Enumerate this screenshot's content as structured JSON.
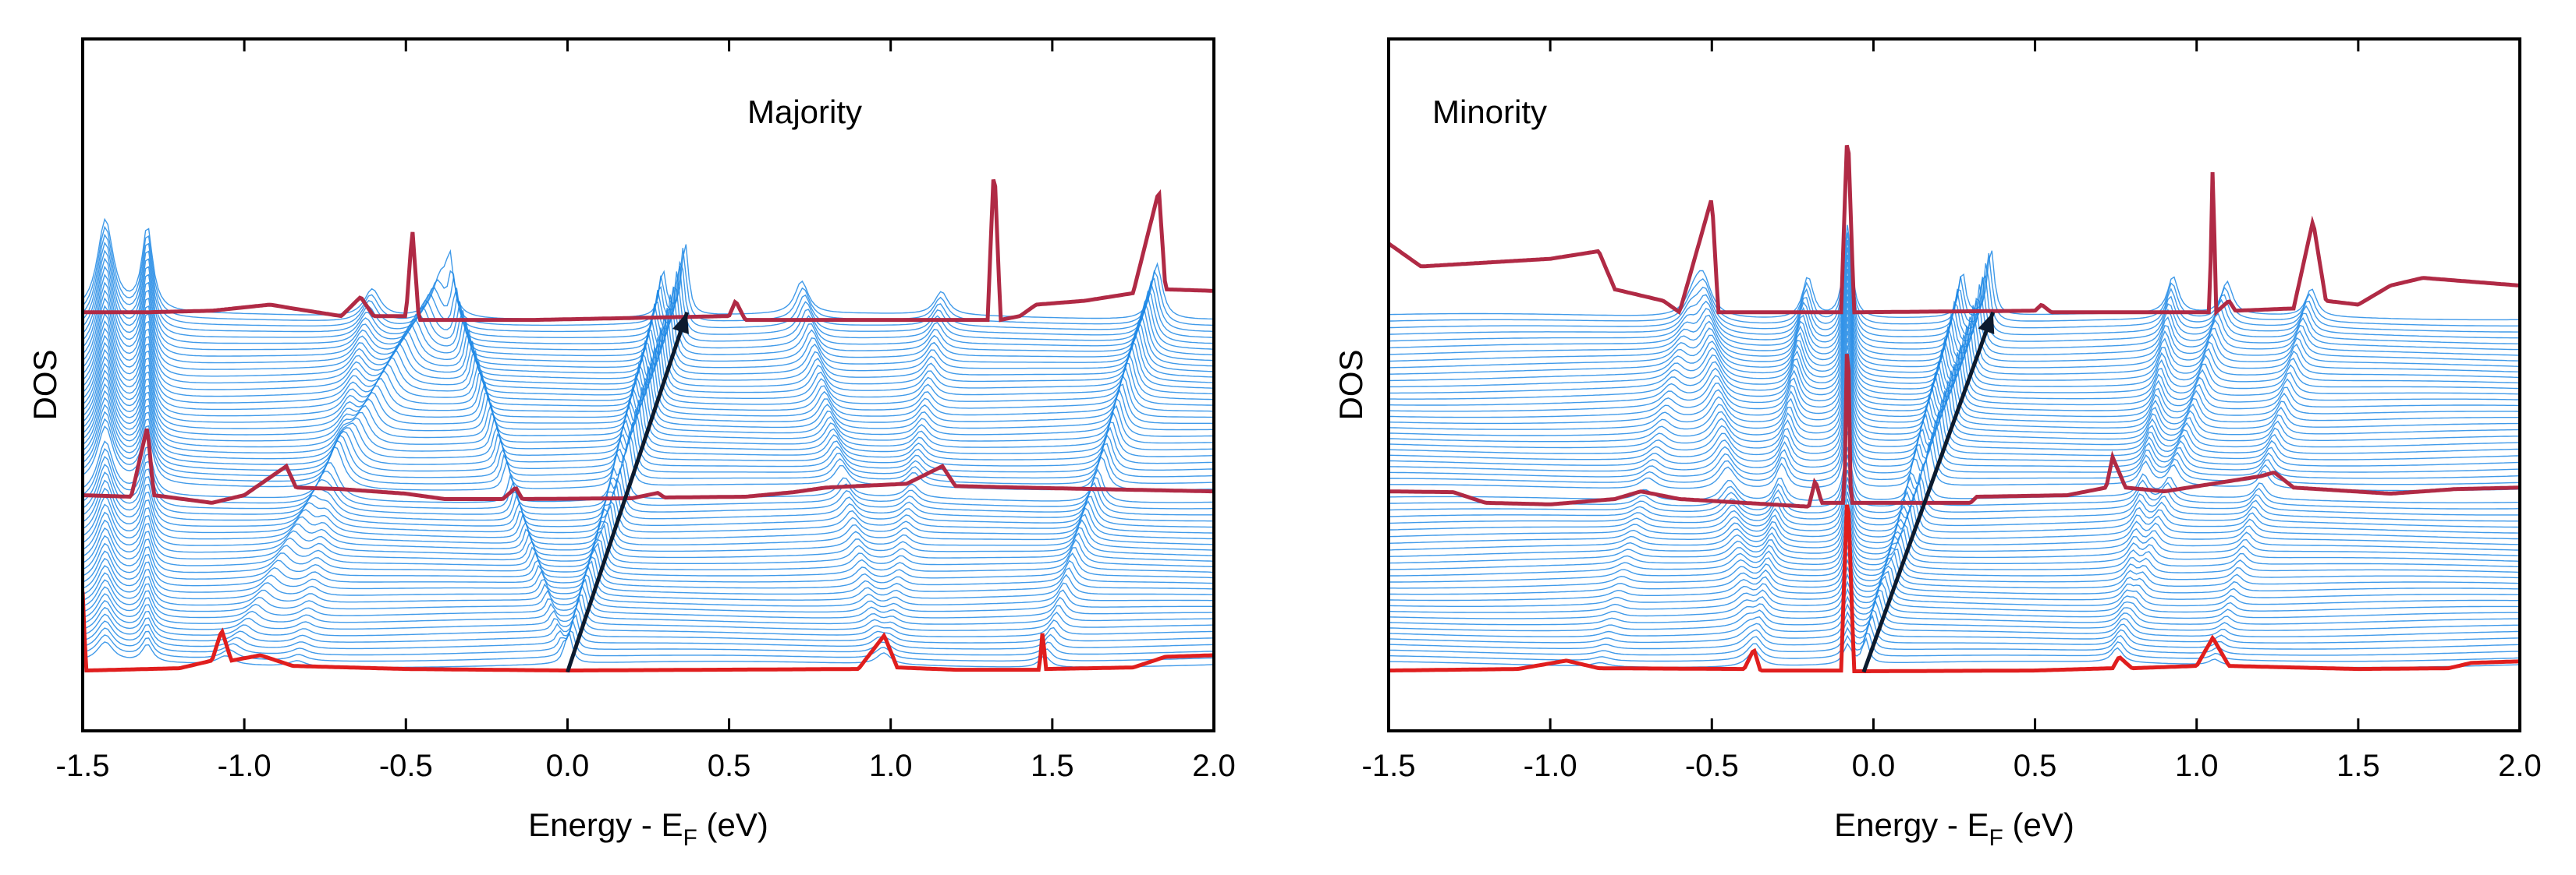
{
  "chart_data": [
    {
      "type": "line",
      "title": "Majority",
      "xlabel": "Energy - E",
      "xlabel_sub": "F",
      "xlabel_unit": " (eV)",
      "ylabel": "DOS",
      "xlim": [
        -1.5,
        2.0
      ],
      "xticks": [
        -1.5,
        -1.0,
        -0.5,
        0.0,
        0.5,
        1.0,
        1.5,
        2.0
      ],
      "xtick_labels": [
        "-1.5",
        "-1.0",
        "-0.5",
        "0.0",
        "0.5",
        "1.0",
        "1.5",
        "2.0"
      ],
      "n_curves": 60,
      "colors": {
        "stack": "#1e88e5",
        "highlight": "#e01e1e",
        "highlight_mid": "#b02a45",
        "arrow": "#0d1b2e"
      },
      "dispersion_arrow": {
        "from": [
          0.0,
          0.0
        ],
        "to": [
          0.37,
          1.0
        ]
      },
      "bands": [
        {
          "x0": -1.07,
          "x1": -0.38,
          "w": 0.03,
          "a": 0.9
        },
        {
          "x0": -0.84,
          "x1": -0.6,
          "w": 0.03,
          "a": 0.6
        },
        {
          "x0": 0.0,
          "x1": 0.37,
          "w": 0.012,
          "a": 1.6
        },
        {
          "x0": 0.0,
          "x1": 0.3,
          "w": 0.012,
          "a": 1.0
        },
        {
          "x0": 0.0,
          "x1": -0.37,
          "w": 0.012,
          "a": 1.0
        },
        {
          "x0": 0.98,
          "x1": 0.72,
          "w": 0.025,
          "a": 0.7
        },
        {
          "x0": 0.98,
          "x1": 1.16,
          "w": 0.025,
          "a": 0.5
        },
        {
          "x0": 1.47,
          "x1": 1.83,
          "w": 0.02,
          "a": 1.2
        },
        {
          "x0": -1.3,
          "x1": -1.3,
          "w": 0.02,
          "a": 1.8
        },
        {
          "x0": -1.43,
          "x1": -1.43,
          "w": 0.03,
          "a": 2.0
        }
      ],
      "highlighted_curves": [
        {
          "index": 0,
          "color": "highlight",
          "points": [
            [
              -1.5,
              1.05
            ],
            [
              -1.49,
              0.02
            ],
            [
              -1.2,
              0.05
            ],
            [
              -1.1,
              0.15
            ],
            [
              -1.07,
              0.55
            ],
            [
              -1.04,
              0.15
            ],
            [
              -0.95,
              0.22
            ],
            [
              -0.85,
              0.08
            ],
            [
              -0.5,
              0.04
            ],
            [
              0.0,
              0.02
            ],
            [
              0.9,
              0.04
            ],
            [
              0.98,
              0.48
            ],
            [
              1.02,
              0.06
            ],
            [
              1.2,
              0.03
            ],
            [
              1.46,
              0.03
            ],
            [
              1.47,
              0.55
            ],
            [
              1.48,
              0.04
            ],
            [
              1.75,
              0.06
            ],
            [
              1.85,
              0.2
            ],
            [
              2.0,
              0.22
            ]
          ]
        },
        {
          "index": 29,
          "color": "highlight_mid",
          "points": [
            [
              -1.5,
              0.0
            ],
            [
              -1.35,
              -0.02
            ],
            [
              -1.3,
              0.9
            ],
            [
              -1.28,
              0.0
            ],
            [
              -1.1,
              -0.1
            ],
            [
              -1.0,
              0.0
            ],
            [
              -0.87,
              0.38
            ],
            [
              -0.84,
              0.1
            ],
            [
              -0.7,
              0.08
            ],
            [
              -0.5,
              0.02
            ],
            [
              -0.38,
              -0.05
            ],
            [
              -0.2,
              -0.05
            ],
            [
              -0.16,
              0.1
            ],
            [
              -0.14,
              -0.05
            ],
            [
              0.2,
              -0.04
            ],
            [
              0.28,
              0.03
            ],
            [
              0.3,
              -0.03
            ],
            [
              0.55,
              -0.02
            ],
            [
              0.7,
              0.04
            ],
            [
              0.8,
              0.1
            ],
            [
              1.05,
              0.15
            ],
            [
              1.16,
              0.38
            ],
            [
              1.2,
              0.12
            ],
            [
              1.4,
              0.1
            ],
            [
              2.0,
              0.05
            ]
          ]
        },
        {
          "index": 59,
          "color": "highlight_mid",
          "points": [
            [
              -1.5,
              0.0
            ],
            [
              -1.3,
              0.0
            ],
            [
              -1.1,
              0.02
            ],
            [
              -0.92,
              0.1
            ],
            [
              -0.85,
              0.05
            ],
            [
              -0.7,
              -0.05
            ],
            [
              -0.64,
              0.2
            ],
            [
              -0.6,
              -0.05
            ],
            [
              -0.5,
              -0.05
            ],
            [
              -0.48,
              1.1
            ],
            [
              -0.46,
              -0.1
            ],
            [
              -0.1,
              -0.1
            ],
            [
              0.5,
              -0.05
            ],
            [
              0.52,
              0.15
            ],
            [
              0.55,
              -0.1
            ],
            [
              1.3,
              -0.1
            ],
            [
              1.32,
              2.0
            ],
            [
              1.34,
              -0.1
            ],
            [
              1.4,
              -0.05
            ],
            [
              1.45,
              0.1
            ],
            [
              1.6,
              0.15
            ],
            [
              1.75,
              0.25
            ],
            [
              1.83,
              1.6
            ],
            [
              1.85,
              0.3
            ],
            [
              2.0,
              0.28
            ]
          ]
        }
      ]
    },
    {
      "type": "line",
      "title": "Minority",
      "xlabel": "Energy - E",
      "xlabel_sub": "F",
      "xlabel_unit": " (eV)",
      "ylabel": "DOS",
      "xlim": [
        -1.5,
        2.0
      ],
      "xticks": [
        -1.5,
        -1.0,
        -0.5,
        0.0,
        0.5,
        1.0,
        1.5,
        2.0
      ],
      "xtick_labels": [
        "-1.5",
        "-1.0",
        "-0.5",
        "0.0",
        "0.5",
        "1.0",
        "1.5",
        "2.0"
      ],
      "n_curves": 60,
      "colors": {
        "stack": "#1e88e5",
        "highlight": "#e01e1e",
        "highlight_mid": "#b02a45",
        "arrow": "#0d1b2e"
      },
      "dispersion_arrow": {
        "from": [
          -0.03,
          0.0
        ],
        "to": [
          0.37,
          1.0
        ]
      },
      "bands": [
        {
          "x0": -0.37,
          "x1": -0.53,
          "w": 0.03,
          "a": 0.8
        },
        {
          "x0": -0.37,
          "x1": -0.2,
          "w": 0.02,
          "a": 0.9
        },
        {
          "x0": -0.03,
          "x1": 0.37,
          "w": 0.012,
          "a": 1.5
        },
        {
          "x0": -0.03,
          "x1": 0.28,
          "w": 0.012,
          "a": 1.0
        },
        {
          "x0": -0.08,
          "x1": -0.08,
          "w": 0.015,
          "a": 2.0
        },
        {
          "x0": 0.75,
          "x1": 0.93,
          "w": 0.02,
          "a": 0.8
        },
        {
          "x0": 0.75,
          "x1": 1.1,
          "w": 0.02,
          "a": 0.7
        },
        {
          "x0": 1.05,
          "x1": 1.36,
          "w": 0.02,
          "a": 0.6
        },
        {
          "x0": -0.85,
          "x1": -0.55,
          "w": 0.03,
          "a": 0.4
        }
      ],
      "highlighted_curves": [
        {
          "index": 0,
          "color": "highlight",
          "points": [
            [
              -1.5,
              0.02
            ],
            [
              -1.1,
              0.04
            ],
            [
              -0.95,
              0.15
            ],
            [
              -0.85,
              0.05
            ],
            [
              -0.4,
              0.04
            ],
            [
              -0.37,
              0.3
            ],
            [
              -0.35,
              0.02
            ],
            [
              -0.1,
              0.02
            ],
            [
              -0.08,
              2.5
            ],
            [
              -0.06,
              0.01
            ],
            [
              0.5,
              0.02
            ],
            [
              0.74,
              0.05
            ],
            [
              0.76,
              0.2
            ],
            [
              0.8,
              0.05
            ],
            [
              1.0,
              0.08
            ],
            [
              1.05,
              0.45
            ],
            [
              1.1,
              0.08
            ],
            [
              1.5,
              0.04
            ],
            [
              1.78,
              0.05
            ],
            [
              1.85,
              0.12
            ],
            [
              2.0,
              0.14
            ]
          ]
        },
        {
          "index": 29,
          "color": "highlight_mid",
          "points": [
            [
              -1.5,
              0.05
            ],
            [
              -1.3,
              0.04
            ],
            [
              -1.2,
              -0.1
            ],
            [
              -1.0,
              -0.12
            ],
            [
              -0.8,
              -0.05
            ],
            [
              -0.72,
              0.05
            ],
            [
              -0.6,
              -0.05
            ],
            [
              -0.4,
              -0.1
            ],
            [
              -0.2,
              -0.15
            ],
            [
              -0.18,
              0.2
            ],
            [
              -0.16,
              -0.1
            ],
            [
              -0.09,
              -0.1
            ],
            [
              -0.08,
              2.5
            ],
            [
              -0.07,
              -0.1
            ],
            [
              0.3,
              -0.1
            ],
            [
              0.32,
              -0.02
            ],
            [
              0.6,
              0.0
            ],
            [
              0.72,
              0.1
            ],
            [
              0.74,
              0.5
            ],
            [
              0.78,
              0.1
            ],
            [
              0.9,
              0.05
            ],
            [
              1.05,
              0.15
            ],
            [
              1.2,
              0.25
            ],
            [
              1.24,
              0.3
            ],
            [
              1.3,
              0.1
            ],
            [
              1.6,
              0.02
            ],
            [
              1.8,
              0.08
            ],
            [
              2.0,
              0.1
            ]
          ]
        },
        {
          "index": 59,
          "color": "highlight_mid",
          "points": [
            [
              -1.5,
              0.9
            ],
            [
              -1.4,
              0.6
            ],
            [
              -1.2,
              0.65
            ],
            [
              -1.0,
              0.7
            ],
            [
              -0.85,
              0.8
            ],
            [
              -0.8,
              0.3
            ],
            [
              -0.65,
              0.15
            ],
            [
              -0.6,
              0.0
            ],
            [
              -0.5,
              1.5
            ],
            [
              -0.48,
              0.0
            ],
            [
              -0.3,
              0.0
            ],
            [
              -0.1,
              0.0
            ],
            [
              -0.08,
              2.5
            ],
            [
              -0.06,
              0.0
            ],
            [
              0.5,
              0.02
            ],
            [
              0.52,
              0.1
            ],
            [
              0.55,
              0.0
            ],
            [
              1.04,
              0.0
            ],
            [
              1.05,
              2.0
            ],
            [
              1.06,
              0.0
            ],
            [
              1.1,
              0.15
            ],
            [
              1.12,
              0.02
            ],
            [
              1.3,
              0.05
            ],
            [
              1.36,
              1.2
            ],
            [
              1.4,
              0.15
            ],
            [
              1.5,
              0.1
            ],
            [
              1.6,
              0.35
            ],
            [
              1.7,
              0.45
            ],
            [
              2.0,
              0.35
            ]
          ]
        }
      ]
    }
  ]
}
